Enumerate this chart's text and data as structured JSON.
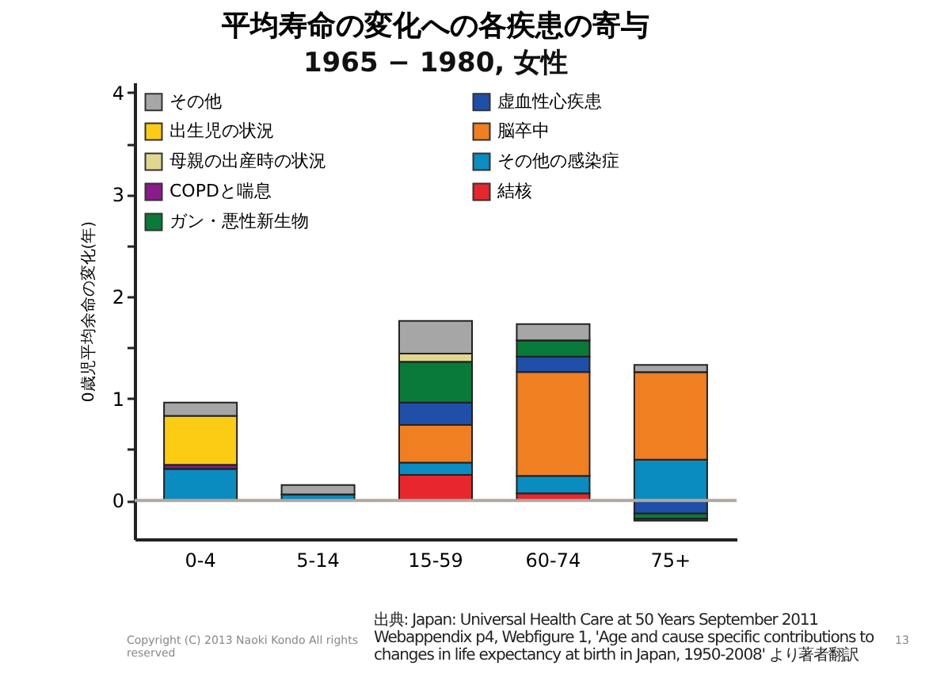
{
  "chart_data": {
    "type": "bar",
    "title": "平均寿命の変化への各疾患の寄与",
    "subtitle": "1965 − 1980, 女性",
    "ylabel": "0歳児平均余命の変化(年)",
    "categories": [
      "0-4",
      "5-14",
      "15-59",
      "60-74",
      "75+"
    ],
    "stacked": true,
    "series": [
      {
        "name": "結核",
        "color": "#e8262e",
        "values": [
          0,
          0,
          0.25,
          0.07,
          null
        ]
      },
      {
        "name": "その他の感染症",
        "color": "#0a8cc0",
        "values": [
          0.31,
          0.06,
          0.12,
          0.17,
          0.4
        ]
      },
      {
        "name": "脳卒中",
        "color": "#f07f22",
        "values": [
          0,
          0,
          0.37,
          1.02,
          0.86
        ]
      },
      {
        "name": "虚血性心疾患",
        "color": "#1f4fa8",
        "values": [
          0,
          0,
          0.22,
          0.15,
          -0.13
        ]
      },
      {
        "name": "ガン・悪性新生物",
        "color": "#0a7a3a",
        "values": [
          0,
          0,
          0.4,
          0.16,
          -0.05
        ]
      },
      {
        "name": "COPDと喘息",
        "color": "#8b1a8b",
        "values": [
          0.04,
          0,
          0,
          0,
          -0.02
        ]
      },
      {
        "name": "母親の出産時の状況",
        "color": "#e0d890",
        "values": [
          0,
          0,
          0.08,
          0,
          0
        ]
      },
      {
        "name": "出生児の状況",
        "color": "#fccc14",
        "values": [
          0.48,
          0,
          0,
          0,
          0
        ]
      },
      {
        "name": "その他",
        "color": "#a6a6a6",
        "values": [
          0.13,
          0.09,
          0.32,
          0.16,
          0.07
        ]
      }
    ],
    "ylim": [
      -0.38,
      4.1
    ],
    "yticks": [
      0,
      {
        "value": 0.5,
        "label": null
      },
      1,
      {
        "value": 1.5,
        "label": null
      },
      2,
      {
        "value": 2.5,
        "label": null
      },
      3,
      {
        "value": 3.5,
        "label": null
      },
      4
    ],
    "ref_lines": [
      {
        "axis": "y",
        "value": 0,
        "color": "#b0a8a0"
      }
    ],
    "grid": false,
    "legend": "top left",
    "annotations": [
      "Copyright (C) 2013 Naoki Kondo All rights reserved",
      "出典: Japan: Universal Health Care at 50 Years September 2011 Webappendix p4, Webfigure 1, 'Age and cause specific contributions to changes in life expectancy at birth in Japan, 1950-2008' より著者翻訳",
      "13"
    ]
  }
}
